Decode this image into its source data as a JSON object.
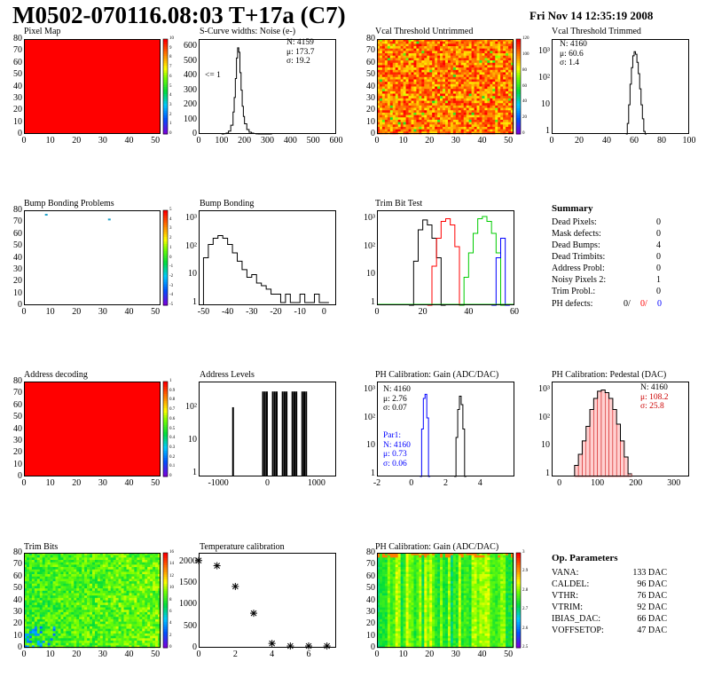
{
  "header": {
    "title": "M0502-070116.08:03 T+17a (C7)",
    "date": "Fri Nov 14 12:35:19 2008"
  },
  "colors": {
    "hist_line": "#000000",
    "red": "#ff0000",
    "green": "#00cc00",
    "blue": "#0000ff",
    "hot_red": "#ff0000",
    "dark_red": "#cc0000"
  },
  "panels": {
    "pixel_map": {
      "title": "Pixel Map",
      "x_ticks": [
        "0",
        "10",
        "20",
        "30",
        "40",
        "50"
      ],
      "y_ticks": [
        "0",
        "10",
        "20",
        "30",
        "40",
        "50",
        "60",
        "70",
        "80"
      ],
      "palette_ticks": [
        "0",
        "1",
        "2",
        "3",
        "4",
        "5",
        "6",
        "7",
        "8",
        "9",
        "10"
      ]
    },
    "scurve": {
      "title": "S-Curve widths: Noise (e-)",
      "x_ticks": [
        "0",
        "100",
        "200",
        "300",
        "400",
        "500",
        "600"
      ],
      "y_ticks": [
        "0",
        "100",
        "200",
        "300",
        "400",
        "500",
        "600"
      ],
      "stats": {
        "n": "N: 4159",
        "mu": "μ: 173.7",
        "sigma": "σ: 19.2"
      },
      "annotation": "<= 1"
    },
    "vcal_untrimmed": {
      "title": "Vcal Threshold Untrimmed",
      "x_ticks": [
        "0",
        "10",
        "20",
        "30",
        "40",
        "50"
      ],
      "y_ticks": [
        "0",
        "10",
        "20",
        "30",
        "40",
        "50",
        "60",
        "70",
        "80"
      ],
      "palette_ticks": [
        "0",
        "20",
        "40",
        "60",
        "80",
        "100",
        "120"
      ]
    },
    "vcal_trimmed": {
      "title": "Vcal Threshold Trimmed",
      "x_ticks": [
        "0",
        "20",
        "40",
        "60",
        "80",
        "100"
      ],
      "y_ticks": [
        "1",
        "10",
        "10²",
        "10³"
      ],
      "stats": {
        "n": "N: 4160",
        "mu": "μ: 60.6",
        "sigma": "σ:  1.4"
      }
    },
    "bump_problems": {
      "title": "Bump Bonding Problems",
      "x_ticks": [
        "0",
        "10",
        "20",
        "30",
        "40",
        "50"
      ],
      "y_ticks": [
        "0",
        "10",
        "20",
        "30",
        "40",
        "50",
        "60",
        "70",
        "80"
      ],
      "palette_ticks": [
        "-5",
        "-4",
        "-3",
        "-2",
        "-1",
        "0",
        "1",
        "2",
        "3",
        "4",
        "5"
      ]
    },
    "bump_bonding": {
      "title": "Bump Bonding",
      "x_ticks": [
        "-50",
        "-40",
        "-30",
        "-20",
        "-10",
        "0"
      ],
      "y_ticks": [
        "1",
        "10",
        "10²",
        "10³"
      ]
    },
    "trim_bit_test": {
      "title": "Trim Bit Test",
      "x_ticks": [
        "0",
        "20",
        "40",
        "60"
      ],
      "y_ticks": [
        "1",
        "10",
        "10²",
        "10³"
      ]
    },
    "summary": {
      "title": "Summary",
      "rows": [
        {
          "label": "Dead Pixels:",
          "value": "0"
        },
        {
          "label": "Mask defects:",
          "value": "0"
        },
        {
          "label": "Dead Bumps:",
          "value": "4"
        },
        {
          "label": "Dead Trimbits:",
          "value": "0"
        },
        {
          "label": "Address Probl:",
          "value": "0"
        },
        {
          "label": "Noisy Pixels 2:",
          "value": "1"
        },
        {
          "label": "Trim Probl.:",
          "value": "0"
        }
      ],
      "ph_label": "PH defects:",
      "ph_values": [
        "0/",
        "0/",
        "0"
      ]
    },
    "address_decoding": {
      "title": "Address decoding",
      "x_ticks": [
        "0",
        "10",
        "20",
        "30",
        "40",
        "50"
      ],
      "y_ticks": [
        "0",
        "10",
        "20",
        "30",
        "40",
        "50",
        "60",
        "70",
        "80"
      ],
      "palette_ticks": [
        "0",
        "0.1",
        "0.2",
        "0.3",
        "0.4",
        "0.5",
        "0.6",
        "0.7",
        "0.8",
        "0.9",
        "1"
      ]
    },
    "address_levels": {
      "title": "Address Levels",
      "x_ticks": [
        "-1000",
        "0",
        "1000"
      ],
      "y_ticks": [
        "1",
        "10",
        "10²"
      ]
    },
    "ph_gain": {
      "title": "PH Calibration: Gain (ADC/DAC)",
      "x_ticks": [
        "-2",
        "0",
        "2",
        "4"
      ],
      "y_ticks": [
        "1",
        "10",
        "10²",
        "10³"
      ],
      "stats": {
        "n": "N: 4160",
        "mu": "μ: 2.76",
        "sigma": "σ: 0.07"
      },
      "par1": {
        "title": "Par1:",
        "n": "N: 4160",
        "mu": "μ: 0.73",
        "sigma": "σ: 0.06"
      }
    },
    "ph_pedestal": {
      "title": "PH Calibration: Pedestal (DAC)",
      "x_ticks": [
        "0",
        "100",
        "200",
        "300"
      ],
      "y_ticks": [
        "1",
        "10",
        "10²",
        "10³"
      ],
      "stats": {
        "n": "N: 4160",
        "mu": "μ: 108.2",
        "sigma": "σ: 25.8"
      }
    },
    "trim_bits": {
      "title": "Trim Bits",
      "x_ticks": [
        "0",
        "10",
        "20",
        "30",
        "40",
        "50"
      ],
      "y_ticks": [
        "0",
        "10",
        "20",
        "30",
        "40",
        "50",
        "60",
        "70",
        "80"
      ],
      "palette_ticks": [
        "0",
        "2",
        "4",
        "6",
        "8",
        "10",
        "12",
        "14",
        "16"
      ]
    },
    "temperature": {
      "title": "Temperature calibration",
      "x_ticks": [
        "0",
        "2",
        "4",
        "6"
      ],
      "y_ticks": [
        "0",
        "500",
        "1000",
        "1500",
        "2000"
      ]
    },
    "ph_gain_map": {
      "title": "PH Calibration: Gain (ADC/DAC)",
      "x_ticks": [
        "0",
        "10",
        "20",
        "30",
        "40",
        "50"
      ],
      "y_ticks": [
        "0",
        "10",
        "20",
        "30",
        "40",
        "50",
        "60",
        "70",
        "80"
      ],
      "palette_ticks": [
        "2.5",
        "2.6",
        "2.7",
        "2.8",
        "2.9",
        "3"
      ]
    },
    "op_params": {
      "title": "Op. Parameters",
      "rows": [
        {
          "label": "VANA:",
          "value": "133 DAC"
        },
        {
          "label": "CALDEL:",
          "value": "96 DAC"
        },
        {
          "label": "VTHR:",
          "value": "76 DAC"
        },
        {
          "label": "VTRIM:",
          "value": "92 DAC"
        },
        {
          "label": "IBIAS_DAC:",
          "value": "66 DAC"
        },
        {
          "label": "VOFFSETOP:",
          "value": "47 DAC"
        }
      ]
    }
  },
  "chart_data": [
    {
      "type": "heatmap",
      "title": "Pixel Map",
      "x_range": [
        0,
        52
      ],
      "y_range": [
        0,
        80
      ],
      "z_range": [
        0,
        10
      ],
      "description_values": {
        "uniform_value": 10
      }
    },
    {
      "type": "line",
      "title": "S-Curve widths: Noise (e-)",
      "xlim": [
        0,
        600
      ],
      "ylim": [
        0,
        650
      ],
      "x": [
        100,
        110,
        120,
        130,
        140,
        150,
        155,
        160,
        165,
        170,
        175,
        180,
        185,
        190,
        195,
        200,
        210,
        220,
        230,
        240,
        250,
        260,
        280,
        300
      ],
      "values": [
        0,
        2,
        6,
        20,
        60,
        150,
        250,
        380,
        520,
        590,
        560,
        420,
        300,
        190,
        120,
        70,
        30,
        12,
        6,
        3,
        1,
        0,
        0,
        0
      ]
    },
    {
      "type": "heatmap",
      "title": "Vcal Threshold Untrimmed",
      "x_range": [
        0,
        52
      ],
      "y_range": [
        0,
        80
      ],
      "z_range": [
        0,
        130
      ]
    },
    {
      "type": "line",
      "title": "Vcal Threshold Trimmed",
      "xlim": [
        0,
        100
      ],
      "log_y": true,
      "x": [
        54,
        55,
        56,
        57,
        58,
        59,
        60,
        61,
        62,
        63,
        64,
        65,
        66,
        67,
        68
      ],
      "values": [
        0,
        2,
        10,
        60,
        250,
        700,
        1000,
        800,
        400,
        150,
        40,
        10,
        3,
        1,
        0
      ]
    },
    {
      "type": "heatmap",
      "title": "Bump Bonding Problems",
      "x_range": [
        0,
        52
      ],
      "y_range": [
        0,
        80
      ],
      "z_range": [
        -5,
        5
      ],
      "points": [
        {
          "x": 8,
          "y": 77
        },
        {
          "x": 32,
          "y": 73
        }
      ]
    },
    {
      "type": "line",
      "title": "Bump Bonding",
      "xlim": [
        -52,
        5
      ],
      "log_y": true,
      "x": [
        -50,
        -48,
        -46,
        -44,
        -42,
        -40,
        -38,
        -36,
        -34,
        -32,
        -30,
        -28,
        -26,
        -24,
        -22,
        -20,
        -18,
        -16,
        -14,
        -12,
        -10,
        -8,
        -6,
        -4,
        -2,
        0
      ],
      "values": [
        40,
        120,
        200,
        250,
        200,
        120,
        60,
        30,
        15,
        8,
        10,
        5,
        4,
        3,
        2,
        2,
        1,
        2,
        1,
        1,
        2,
        1,
        1,
        2,
        1,
        1
      ]
    },
    {
      "type": "line",
      "title": "Trim Bit Test",
      "xlim": [
        0,
        60
      ],
      "log_y": true,
      "series": [
        {
          "x": [
            14,
            16,
            18,
            20,
            22,
            24,
            26,
            28
          ],
          "values": [
            0,
            30,
            400,
            900,
            600,
            200,
            40,
            0
          ]
        },
        {
          "x": [
            22,
            24,
            26,
            28,
            30,
            32,
            34,
            36
          ],
          "values": [
            0,
            20,
            200,
            800,
            1000,
            600,
            100,
            0
          ]
        },
        {
          "x": [
            36,
            38,
            40,
            42,
            44,
            46,
            48,
            50,
            52,
            54
          ],
          "values": [
            0,
            8,
            60,
            300,
            1000,
            1200,
            800,
            300,
            60,
            0
          ]
        },
        {
          "x": [
            50,
            52,
            54,
            56
          ],
          "values": [
            0,
            40,
            200,
            0
          ]
        }
      ]
    },
    {
      "type": "heatmap",
      "title": "Address decoding",
      "x_range": [
        0,
        52
      ],
      "y_range": [
        0,
        80
      ],
      "z_range": [
        0,
        1
      ],
      "description_values": {
        "uniform_value": 1
      }
    },
    {
      "type": "line",
      "title": "Address Levels",
      "xlim": [
        -1400,
        1400
      ],
      "log_y": true,
      "x": [
        -700,
        -50,
        150,
        350,
        550,
        750
      ],
      "values": [
        100,
        300,
        300,
        300,
        300,
        300
      ]
    },
    {
      "type": "line",
      "title": "PH Calibration: Gain (ADC/DAC)",
      "xlim": [
        -2,
        6
      ],
      "log_y": true,
      "series": [
        {
          "x": [
            2.5,
            2.6,
            2.7,
            2.8,
            2.9,
            3.0,
            3.1
          ],
          "values": [
            0,
            20,
            200,
            600,
            300,
            40,
            0
          ]
        },
        {
          "x": [
            0.5,
            0.6,
            0.7,
            0.8,
            0.9,
            1.0
          ],
          "values": [
            0,
            40,
            500,
            700,
            100,
            0
          ]
        }
      ]
    },
    {
      "type": "bar",
      "title": "PH Calibration: Pedestal (DAC)",
      "xlim": [
        -20,
        340
      ],
      "log_y": true,
      "x": [
        40,
        50,
        60,
        70,
        80,
        90,
        100,
        110,
        120,
        130,
        140,
        150,
        160,
        170,
        180
      ],
      "values": [
        2,
        5,
        15,
        50,
        200,
        500,
        900,
        1000,
        800,
        500,
        200,
        60,
        15,
        4,
        1
      ]
    },
    {
      "type": "heatmap",
      "title": "Trim Bits",
      "x_range": [
        0,
        52
      ],
      "y_range": [
        0,
        80
      ],
      "z_range": [
        0,
        16
      ]
    },
    {
      "type": "scatter",
      "title": "Temperature calibration",
      "xlim": [
        0,
        7.5
      ],
      "ylim": [
        0,
        2200
      ],
      "x": [
        0,
        1,
        2,
        3,
        4,
        5,
        6,
        7
      ],
      "values": [
        2020,
        1900,
        1420,
        800,
        100,
        40,
        40,
        40
      ]
    },
    {
      "type": "heatmap",
      "title": "PH Calibration: Gain (ADC/DAC)",
      "x_range": [
        0,
        52
      ],
      "y_range": [
        0,
        80
      ],
      "z_range": [
        2.45,
        3.05
      ]
    }
  ]
}
